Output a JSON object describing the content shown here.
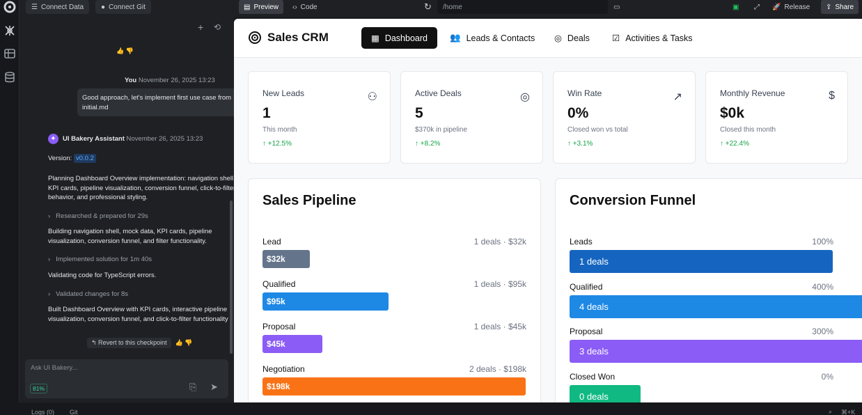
{
  "topbar_left": {
    "connect_data": "Connect Data",
    "connect_git": "Connect Git"
  },
  "topbar": {
    "preview": "Preview",
    "code": "Code",
    "url": "/home",
    "release": "Release",
    "share": "Share"
  },
  "chat": {
    "user_name": "You",
    "user_time": "November 26, 2025 13:23",
    "user_message": "Good approach, let's implement first use case from initial.md",
    "assistant_name": "UI Bakery Assistant",
    "assistant_time": "November 26, 2025 13:23",
    "version_label": "Version:",
    "version": "v0.0.2",
    "para1": "Planning Dashboard Overview implementation: navigation shell, KPI cards, pipeline visualization, conversion funnel, click-to-filter behavior, and professional styling.",
    "step1": "Researched & prepared for 29s",
    "para2": "Building navigation shell, mock data, KPI cards, pipeline visualization, conversion funnel, and filter functionality.",
    "step2": "Implemented solution for 1m 40s",
    "para3": "Validating code for TypeScript errors.",
    "step3": "Validated changes for 8s",
    "para4": "Built Dashboard Overview with KPI cards, interactive pipeline visualization, conversion funnel, and click-to-filter functionality",
    "revert": "Revert to this checkpoint",
    "input_placeholder": "Ask UI Bakery...",
    "context_pct": "81%"
  },
  "app": {
    "brand": "Sales CRM",
    "nav": [
      "Dashboard",
      "Leads & Contacts",
      "Deals",
      "Activities & Tasks"
    ],
    "kpis": [
      {
        "label": "New Leads",
        "value": "1",
        "sub": "This month",
        "trend": "↑ +12.5%",
        "icon": "users-icon"
      },
      {
        "label": "Active Deals",
        "value": "5",
        "sub": "$370k in pipeline",
        "trend": "↑ +8.2%",
        "icon": "target-icon"
      },
      {
        "label": "Win Rate",
        "value": "0%",
        "sub": "Closed won vs total",
        "trend": "↑ +3.1%",
        "icon": "trending-up-icon"
      },
      {
        "label": "Monthly Revenue",
        "value": "$0k",
        "sub": "Closed this month",
        "trend": "↑ +22.4%",
        "icon": "dollar-icon"
      }
    ],
    "pipeline": {
      "title": "Sales Pipeline",
      "stages": [
        {
          "label": "Lead",
          "meta": "1 deals · $32k",
          "bar": "$32k",
          "value_k": 32,
          "color": "#64748b"
        },
        {
          "label": "Qualified",
          "meta": "1 deals · $95k",
          "bar": "$95k",
          "value_k": 95,
          "color": "#1e88e5"
        },
        {
          "label": "Proposal",
          "meta": "1 deals · $45k",
          "bar": "$45k",
          "value_k": 45,
          "color": "#8b5cf6"
        },
        {
          "label": "Negotiation",
          "meta": "2 deals · $198k",
          "bar": "$198k",
          "value_k": 198,
          "color": "#f97316"
        }
      ]
    },
    "funnel": {
      "title": "Conversion Funnel",
      "stages": [
        {
          "label": "Leads",
          "pct": "100%",
          "bar": "1 deals",
          "percent": 100,
          "color": "#1565c0"
        },
        {
          "label": "Qualified",
          "pct": "400%",
          "bar": "4 deals",
          "percent": 400,
          "color": "#1e88e5"
        },
        {
          "label": "Proposal",
          "pct": "300%",
          "bar": "3 deals",
          "percent": 300,
          "color": "#8b5cf6"
        },
        {
          "label": "Closed Won",
          "pct": "0%",
          "bar": "0 deals",
          "percent": 0,
          "color": "#10b981"
        }
      ]
    }
  },
  "statusbar": {
    "logs": "Logs (0)",
    "git": "Git",
    "shortcut": "⌘+K"
  }
}
